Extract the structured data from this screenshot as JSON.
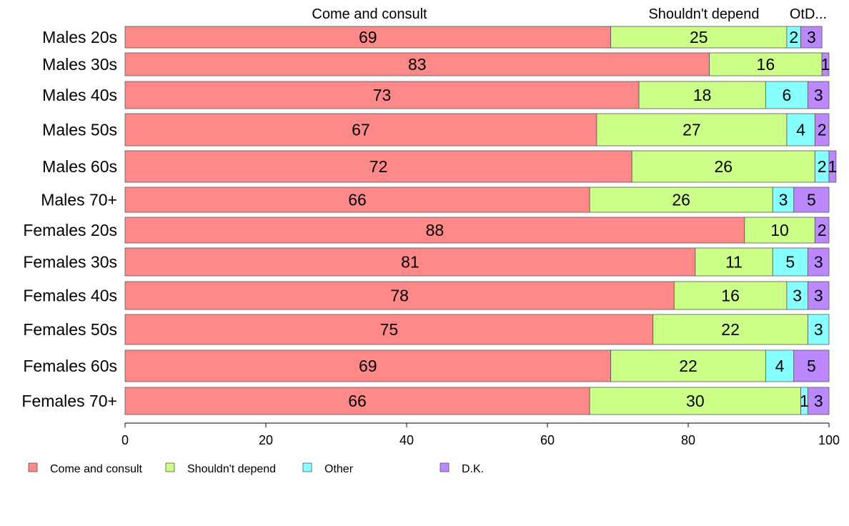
{
  "chart_data": {
    "type": "bar",
    "orientation": "horizontal",
    "stacked": true,
    "title": "",
    "xlabel": "",
    "ylabel": "",
    "xlim": [
      0,
      100
    ],
    "x_ticks": [
      0,
      20,
      40,
      60,
      80,
      100
    ],
    "grid": false,
    "legend_position": "bottom-left",
    "column_headers": [
      "Come and consult",
      "Shouldn't depend",
      "OtD..."
    ],
    "categories": [
      "Males 20s",
      "Males 30s",
      "Males 40s",
      "Males 50s",
      "Males 60s",
      "Males 70+",
      "Females 20s",
      "Females 30s",
      "Females 40s",
      "Females 50s",
      "Females 60s",
      "Females 70+"
    ],
    "series": [
      {
        "name": "Come and consult",
        "color": "#FF8888",
        "values": [
          69,
          83,
          73,
          67,
          72,
          66,
          88,
          81,
          78,
          75,
          69,
          66
        ]
      },
      {
        "name": "Shouldn't depend",
        "color": "#CCFF88",
        "values": [
          25,
          16,
          18,
          27,
          26,
          26,
          10,
          11,
          16,
          22,
          22,
          30
        ]
      },
      {
        "name": "Other",
        "color": "#88FFFF",
        "values": [
          2,
          0,
          6,
          4,
          2,
          3,
          0,
          5,
          3,
          3,
          4,
          1
        ]
      },
      {
        "name": "D.K.",
        "color": "#BB88FF",
        "values": [
          3,
          1,
          3,
          2,
          1,
          5,
          2,
          3,
          3,
          0,
          5,
          3
        ]
      }
    ]
  }
}
